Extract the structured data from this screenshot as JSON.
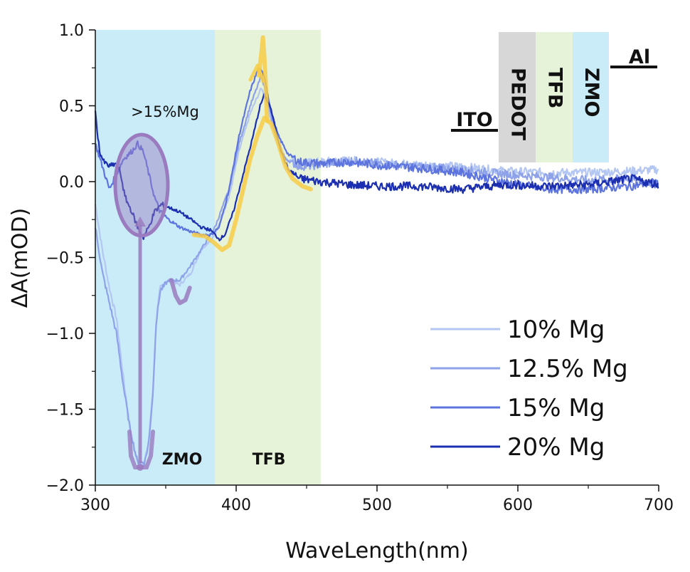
{
  "chart_data": {
    "type": "line",
    "title": "",
    "xlabel": "WaveLength(nm)",
    "ylabel": "ΔA(mOD)",
    "xlim": [
      300,
      700
    ],
    "ylim": [
      -2.0,
      1.0
    ],
    "x_ticks": [
      300,
      400,
      500,
      600,
      700
    ],
    "x_tick_labels": [
      "300",
      "400",
      "500",
      "600",
      "700"
    ],
    "y_ticks": [
      1.0,
      0.5,
      0.0,
      -0.5,
      -1.0,
      -1.5,
      -2.0
    ],
    "y_tick_labels": [
      "1.0",
      "0.5",
      "0.0",
      "−0.5",
      "−1.0",
      "−1.5",
      "−2.0"
    ],
    "grid": false,
    "legend_position": "bottom-right",
    "regions": [
      {
        "label": "ZMO",
        "x_range": [
          300,
          385
        ],
        "color": "#c9ecf8"
      },
      {
        "label": "TFB",
        "x_range": [
          385,
          460
        ],
        "color": "#e6f3d9"
      }
    ],
    "series": [
      {
        "name": "10% Mg",
        "color": "#b4c6f2",
        "points": [
          [
            300,
            -0.15
          ],
          [
            305,
            -0.45
          ],
          [
            310,
            -0.7
          ],
          [
            315,
            -0.9
          ],
          [
            320,
            -1.3
          ],
          [
            325,
            -1.65
          ],
          [
            330,
            -1.85
          ],
          [
            335,
            -1.85
          ],
          [
            338,
            -1.7
          ],
          [
            341,
            -1.35
          ],
          [
            343,
            -0.95
          ],
          [
            346,
            -0.7
          ],
          [
            352,
            -0.65
          ],
          [
            360,
            -0.68
          ],
          [
            368,
            -0.6
          ],
          [
            375,
            -0.45
          ],
          [
            385,
            -0.35
          ],
          [
            395,
            -0.1
          ],
          [
            402,
            0.2
          ],
          [
            410,
            0.45
          ],
          [
            418,
            0.62
          ],
          [
            422,
            0.5
          ],
          [
            428,
            0.3
          ],
          [
            435,
            0.15
          ],
          [
            445,
            0.12
          ],
          [
            460,
            0.13
          ],
          [
            480,
            0.14
          ],
          [
            500,
            0.13
          ],
          [
            530,
            0.11
          ],
          [
            560,
            0.1
          ],
          [
            590,
            0.07
          ],
          [
            620,
            0.06
          ],
          [
            650,
            0.06
          ],
          [
            680,
            0.07
          ],
          [
            700,
            0.08
          ]
        ]
      },
      {
        "name": "12.5% Mg",
        "color": "#8ea2ea",
        "points": [
          [
            300,
            -0.3
          ],
          [
            305,
            -0.6
          ],
          [
            310,
            -0.8
          ],
          [
            315,
            -1.0
          ],
          [
            320,
            -1.35
          ],
          [
            325,
            -1.65
          ],
          [
            330,
            -1.85
          ],
          [
            335,
            -1.85
          ],
          [
            338,
            -1.72
          ],
          [
            341,
            -1.38
          ],
          [
            343,
            -0.95
          ],
          [
            346,
            -0.72
          ],
          [
            352,
            -0.65
          ],
          [
            360,
            -0.65
          ],
          [
            368,
            -0.55
          ],
          [
            375,
            -0.45
          ],
          [
            385,
            -0.3
          ],
          [
            395,
            -0.05
          ],
          [
            402,
            0.25
          ],
          [
            410,
            0.5
          ],
          [
            418,
            0.7
          ],
          [
            422,
            0.55
          ],
          [
            428,
            0.3
          ],
          [
            435,
            0.15
          ],
          [
            445,
            0.1
          ],
          [
            460,
            0.11
          ],
          [
            480,
            0.14
          ],
          [
            500,
            0.12
          ],
          [
            530,
            0.1
          ],
          [
            560,
            0.08
          ],
          [
            590,
            0.05
          ],
          [
            620,
            0.03
          ],
          [
            650,
            0.01
          ],
          [
            680,
            0.02
          ],
          [
            700,
            -0.02
          ]
        ]
      },
      {
        "name": "15% Mg",
        "color": "#5d74df",
        "points": [
          [
            300,
            0.25
          ],
          [
            305,
            0.1
          ],
          [
            310,
            -0.05
          ],
          [
            315,
            0.05
          ],
          [
            320,
            0.15
          ],
          [
            326,
            0.2
          ],
          [
            330,
            0.25
          ],
          [
            334,
            0.2
          ],
          [
            338,
            0.05
          ],
          [
            342,
            -0.1
          ],
          [
            346,
            -0.2
          ],
          [
            352,
            -0.25
          ],
          [
            360,
            -0.3
          ],
          [
            368,
            -0.33
          ],
          [
            375,
            -0.35
          ],
          [
            382,
            -0.35
          ],
          [
            388,
            -0.3
          ],
          [
            395,
            -0.05
          ],
          [
            402,
            0.3
          ],
          [
            410,
            0.6
          ],
          [
            416,
            0.75
          ],
          [
            420,
            0.7
          ],
          [
            425,
            0.45
          ],
          [
            430,
            0.3
          ],
          [
            437,
            0.18
          ],
          [
            445,
            0.13
          ],
          [
            460,
            0.12
          ],
          [
            480,
            0.13
          ],
          [
            500,
            0.11
          ],
          [
            530,
            0.09
          ],
          [
            560,
            0.06
          ],
          [
            590,
            0.0
          ],
          [
            620,
            -0.05
          ],
          [
            650,
            -0.05
          ],
          [
            680,
            -0.03
          ],
          [
            700,
            0.0
          ]
        ]
      },
      {
        "name": "20% Mg",
        "color": "#1c2fb0",
        "points": [
          [
            300,
            0.45
          ],
          [
            303,
            0.2
          ],
          [
            306,
            0.13
          ],
          [
            310,
            0.1
          ],
          [
            315,
            0.12
          ],
          [
            318,
            0.05
          ],
          [
            321,
            -0.1
          ],
          [
            326,
            -0.2
          ],
          [
            330,
            -0.3
          ],
          [
            334,
            -0.37
          ],
          [
            338,
            -0.3
          ],
          [
            342,
            -0.2
          ],
          [
            347,
            -0.15
          ],
          [
            352,
            -0.17
          ],
          [
            360,
            -0.2
          ],
          [
            368,
            -0.25
          ],
          [
            375,
            -0.3
          ],
          [
            382,
            -0.32
          ],
          [
            388,
            -0.38
          ],
          [
            392,
            -0.35
          ],
          [
            398,
            -0.2
          ],
          [
            405,
            0.05
          ],
          [
            412,
            0.3
          ],
          [
            417,
            0.5
          ],
          [
            420,
            0.57
          ],
          [
            424,
            0.5
          ],
          [
            428,
            0.35
          ],
          [
            432,
            0.2
          ],
          [
            437,
            0.08
          ],
          [
            445,
            0.02
          ],
          [
            460,
            0.0
          ],
          [
            480,
            -0.02
          ],
          [
            500,
            -0.03
          ],
          [
            530,
            -0.03
          ],
          [
            560,
            -0.05
          ],
          [
            590,
            -0.02
          ],
          [
            620,
            -0.03
          ],
          [
            650,
            -0.02
          ],
          [
            680,
            0.02
          ],
          [
            700,
            -0.02
          ]
        ]
      }
    ],
    "highlights": [
      {
        "color": "#f7cb45",
        "points": [
          [
            370,
            -0.35
          ],
          [
            378,
            -0.36
          ],
          [
            384,
            -0.4
          ],
          [
            390,
            -0.45
          ],
          [
            395,
            -0.42
          ],
          [
            400,
            -0.25
          ],
          [
            405,
            -0.05
          ],
          [
            410,
            0.15
          ],
          [
            415,
            0.3
          ],
          [
            420,
            0.42
          ],
          [
            425,
            0.38
          ],
          [
            430,
            0.25
          ],
          [
            435,
            0.1
          ],
          [
            440,
            0.02
          ],
          [
            447,
            -0.03
          ],
          [
            453,
            -0.05
          ]
        ]
      },
      {
        "color": "#f7cb45",
        "points": [
          [
            416,
            0.7
          ],
          [
            418,
            0.85
          ],
          [
            419,
            0.95
          ],
          [
            420,
            0.82
          ],
          [
            421,
            0.65
          ],
          [
            421.5,
            0.5
          ],
          [
            422,
            0.4
          ]
        ]
      },
      {
        "color": "#9a7bbf",
        "points": [
          [
            354,
            -0.65
          ],
          [
            357,
            -0.75
          ],
          [
            360,
            -0.8
          ],
          [
            364,
            -0.78
          ],
          [
            367,
            -0.7
          ]
        ]
      }
    ],
    "annotations": {
      "mg_label": ">15%Mg",
      "zmo_label": "ZMO",
      "tfb_label": "TFB"
    },
    "device_stack": [
      {
        "label": "ITO",
        "color": "#ffffff"
      },
      {
        "label": "PEDOT",
        "color": "#d7d7d7"
      },
      {
        "label": "TFB",
        "color": "#e6f3d9"
      },
      {
        "label": "ZMO",
        "color": "#c9ecf8"
      },
      {
        "label": "Al",
        "color": "#ffffff"
      }
    ]
  },
  "colors": {
    "marker_purple": "#9a7bbf",
    "highlight_yellow": "#f7cb45"
  }
}
